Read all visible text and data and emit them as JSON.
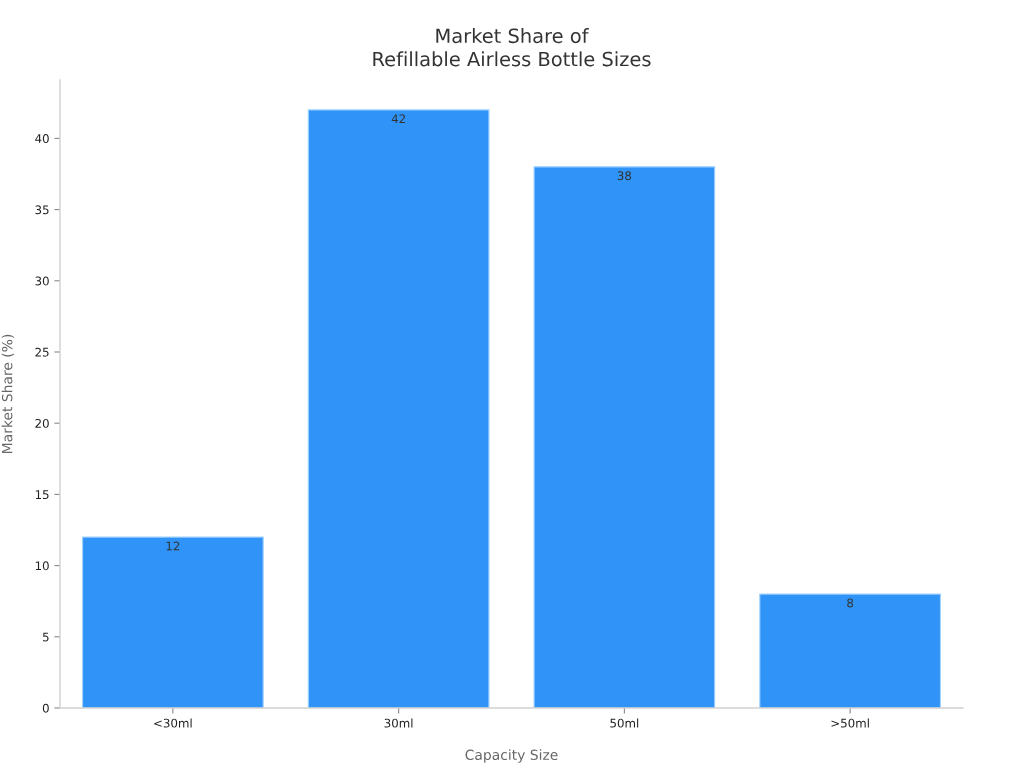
{
  "chart_data": {
    "type": "bar",
    "title": "Market Share of\nRefillable Airless Bottle Sizes",
    "xlabel": "Capacity Size",
    "ylabel": "Market Share (%)",
    "categories": [
      "<30ml",
      "30ml",
      "50ml",
      ">50ml"
    ],
    "values": [
      12,
      42,
      38,
      8
    ],
    "color": "#2f93f8",
    "ylim": [
      0,
      44.1
    ],
    "yticks": [
      0,
      5,
      10,
      15,
      20,
      25,
      30,
      35,
      40
    ],
    "grid": false,
    "legend": false,
    "data_labels": true
  }
}
